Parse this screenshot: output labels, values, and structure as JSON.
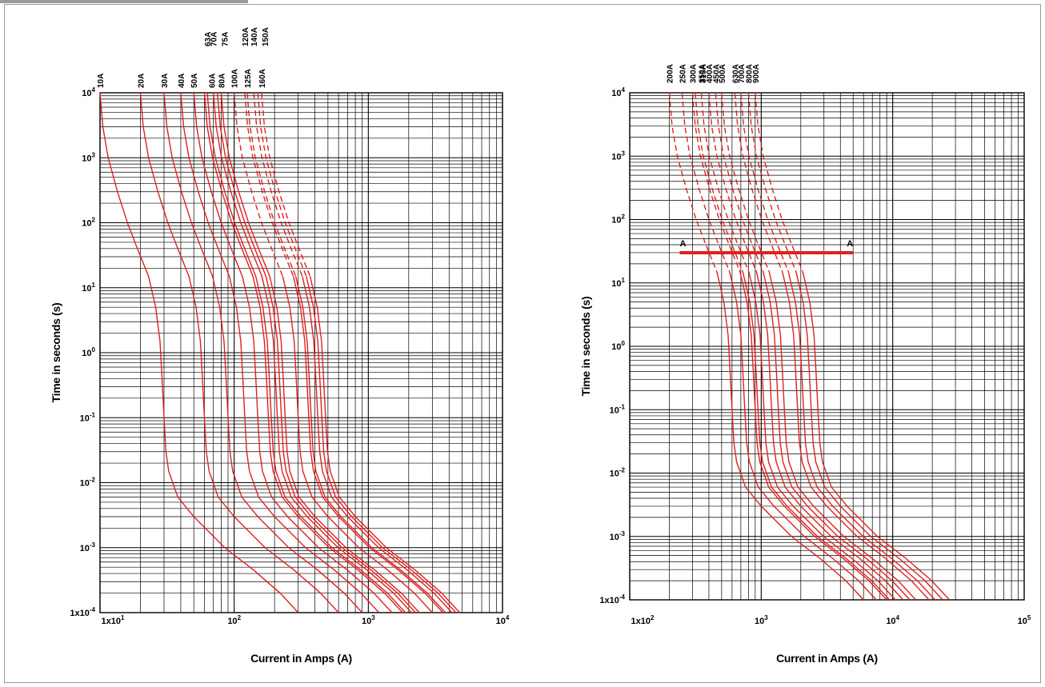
{
  "chart_data": [
    {
      "type": "line",
      "x_scale": "log",
      "y_scale": "log",
      "xlim": [
        10,
        10000
      ],
      "ylim": [
        0.0001,
        10000
      ],
      "x_tick_labels": [
        "1x10",
        "10",
        "10",
        "10"
      ],
      "x_tick_exponents": [
        "1",
        "2",
        "3",
        "4"
      ],
      "y_tick_labels": [
        "1x10",
        "10",
        "10",
        "10",
        "10",
        "10",
        "10",
        "10",
        "10"
      ],
      "y_tick_exponents": [
        "-4",
        "-3",
        "-2",
        "-1",
        "0",
        "1",
        "2",
        "3",
        "4"
      ],
      "xlabel": "Current in Amps (A)",
      "ylabel": "Time in seconds (s)",
      "grid": true,
      "curve_color": "#e02020",
      "series": [
        {
          "name": "10A",
          "rating": 10
        },
        {
          "name": "20A",
          "rating": 20
        },
        {
          "name": "30A",
          "rating": 30
        },
        {
          "name": "40A",
          "rating": 40
        },
        {
          "name": "50A",
          "rating": 50
        },
        {
          "name": "63A",
          "rating": 63
        },
        {
          "name": "60A",
          "rating": 60
        },
        {
          "name": "70A",
          "rating": 70
        },
        {
          "name": "80A",
          "rating": 80
        },
        {
          "name": "75A",
          "rating": 75
        },
        {
          "name": "100A",
          "rating": 100
        },
        {
          "name": "120A",
          "rating": 120
        },
        {
          "name": "125A",
          "rating": 125
        },
        {
          "name": "140A",
          "rating": 140
        },
        {
          "name": "160A",
          "rating": 160
        },
        {
          "name": "150A",
          "rating": 150
        }
      ]
    },
    {
      "type": "line",
      "x_scale": "log",
      "y_scale": "log",
      "xlim": [
        100,
        100000
      ],
      "ylim": [
        0.0001,
        10000
      ],
      "x_tick_labels": [
        "1x10",
        "10",
        "10",
        "10"
      ],
      "x_tick_exponents": [
        "2",
        "3",
        "4",
        "5"
      ],
      "y_tick_labels": [
        "1x10",
        "10",
        "10",
        "10",
        "10",
        "10",
        "10",
        "10",
        "10"
      ],
      "y_tick_exponents": [
        "-4",
        "-3",
        "-2",
        "-1",
        "0",
        "1",
        "2",
        "3",
        "4"
      ],
      "xlabel": "Current in Amps (A)",
      "ylabel": "Time in seconds (s)",
      "grid": true,
      "curve_color": "#e02020",
      "marker": {
        "label_left": "A",
        "label_right": "A",
        "time": 30,
        "x_from": 240,
        "x_to": 5000
      },
      "series": [
        {
          "name": "200A",
          "rating": 200
        },
        {
          "name": "250A",
          "rating": 250
        },
        {
          "name": "300A",
          "rating": 300
        },
        {
          "name": "315A",
          "rating": 315
        },
        {
          "name": "350A",
          "rating": 350
        },
        {
          "name": "400A",
          "rating": 400
        },
        {
          "name": "450A",
          "rating": 450
        },
        {
          "name": "500A",
          "rating": 500
        },
        {
          "name": "630A",
          "rating": 630
        },
        {
          "name": "700A",
          "rating": 700
        },
        {
          "name": "800A",
          "rating": 800
        },
        {
          "name": "900A",
          "rating": 900
        }
      ]
    }
  ]
}
